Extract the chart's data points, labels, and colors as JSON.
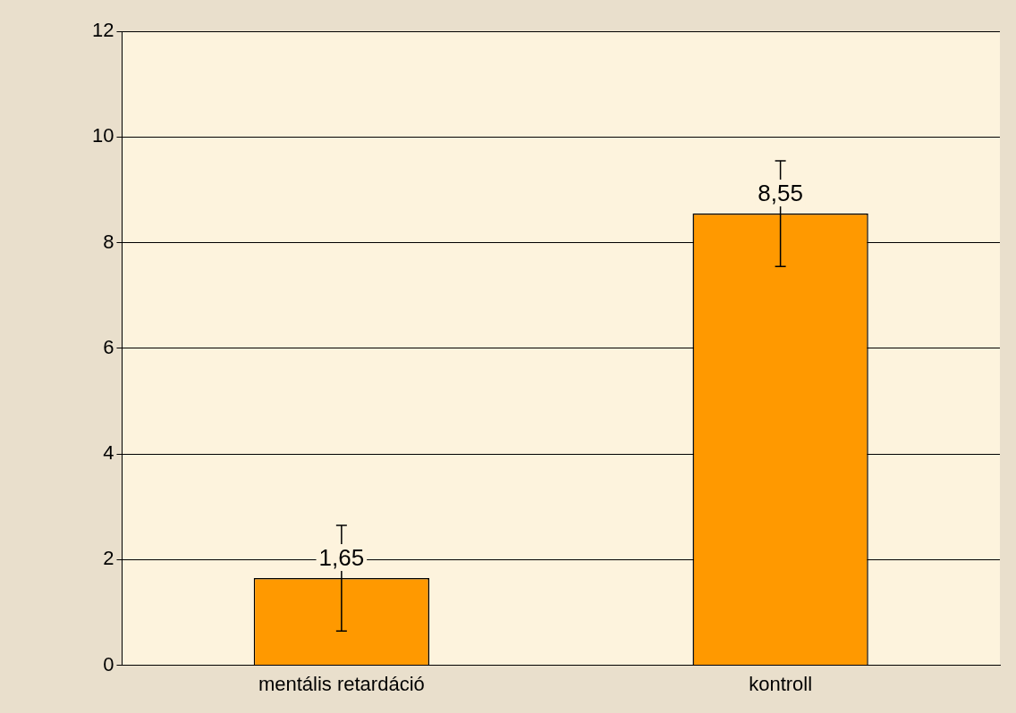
{
  "chart_data": {
    "type": "bar",
    "categories": [
      "mentális retardáció",
      "kontroll"
    ],
    "values": [
      1.65,
      8.55
    ],
    "errors": [
      1,
      1
    ],
    "value_labels": [
      "1,65",
      "8,55"
    ],
    "color": "#ff9900",
    "ylim": [
      0,
      12
    ],
    "yticks": [
      0,
      2,
      4,
      6,
      8,
      10,
      12
    ],
    "grid": "y",
    "legend": false
  }
}
